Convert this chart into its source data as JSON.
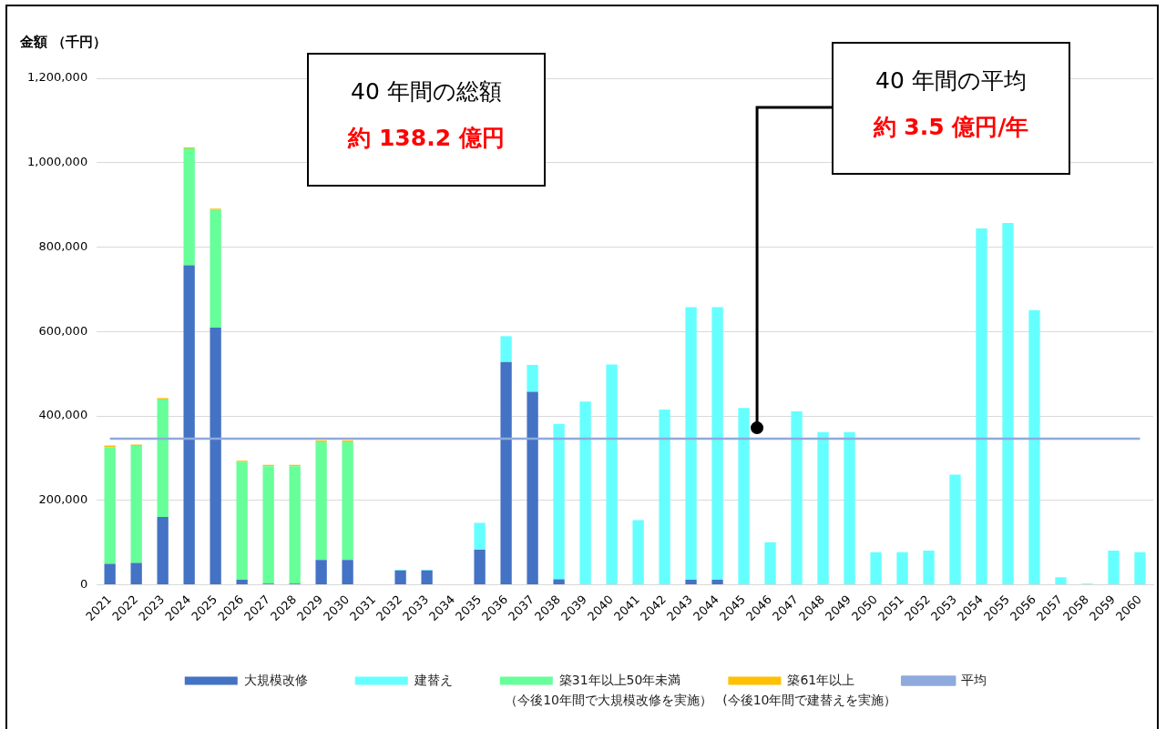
{
  "chart_data": {
    "type": "bar",
    "stacked": true,
    "ylabel": "金額 （千円）",
    "categories": [
      "2021",
      "2022",
      "2023",
      "2024",
      "2025",
      "2026",
      "2027",
      "2028",
      "2029",
      "2030",
      "2031",
      "2032",
      "2033",
      "2034",
      "2035",
      "2036",
      "2037",
      "2038",
      "2039",
      "2040",
      "2041",
      "2042",
      "2043",
      "2044",
      "2045",
      "2046",
      "2047",
      "2048",
      "2049",
      "2050",
      "2051",
      "2052",
      "2053",
      "2054",
      "2055",
      "2056",
      "2057",
      "2058",
      "2059",
      "2060"
    ],
    "series": [
      {
        "name": "大規模改修",
        "color": "#4472c4",
        "values": [
          50000,
          52000,
          161000,
          757000,
          609000,
          12000,
          3000,
          3000,
          59000,
          59000,
          0,
          34000,
          34000,
          0,
          83000,
          528000,
          457000,
          13000,
          0,
          0,
          0,
          0,
          12000,
          12000,
          0,
          0,
          0,
          0,
          0,
          0,
          0,
          0,
          0,
          0,
          0,
          0,
          0,
          0,
          0,
          0
        ]
      },
      {
        "name": "建替え",
        "color": "#66ffff",
        "values": [
          0,
          0,
          0,
          0,
          0,
          0,
          0,
          0,
          0,
          0,
          0,
          2000,
          2000,
          0,
          64000,
          61000,
          64000,
          368000,
          434000,
          522000,
          153000,
          415000,
          646000,
          646000,
          419000,
          101000,
          411000,
          362000,
          362000,
          77000,
          77000,
          81000,
          261000,
          844000,
          857000,
          651000,
          18000,
          3000,
          81000,
          77000
        ]
      },
      {
        "name": "築31年以上50年未満",
        "color": "#66ff99",
        "values": [
          276000,
          277000,
          278000,
          277000,
          279000,
          279000,
          278000,
          278000,
          279000,
          279000,
          0,
          0,
          0,
          0,
          0,
          0,
          0,
          0,
          0,
          0,
          0,
          0,
          0,
          0,
          0,
          0,
          0,
          0,
          0,
          0,
          0,
          0,
          0,
          0,
          0,
          0,
          0,
          0,
          0,
          0
        ]
      },
      {
        "name": "築61年以上",
        "color": "#ffc000",
        "values": [
          4000,
          3000,
          3000,
          2000,
          3000,
          3000,
          3000,
          3000,
          4000,
          4000,
          0,
          0,
          0,
          0,
          0,
          0,
          0,
          0,
          0,
          0,
          0,
          0,
          0,
          0,
          0,
          0,
          0,
          0,
          0,
          0,
          0,
          0,
          0,
          0,
          0,
          0,
          0,
          0,
          0,
          0
        ]
      },
      {
        "name": "平均",
        "type": "line",
        "color": "#8faadc",
        "values": [
          346000,
          346000,
          346000,
          346000,
          346000,
          346000,
          346000,
          346000,
          346000,
          346000,
          346000,
          346000,
          346000,
          346000,
          346000,
          346000,
          346000,
          346000,
          346000,
          346000,
          346000,
          346000,
          346000,
          346000,
          346000,
          346000,
          346000,
          346000,
          346000,
          346000,
          346000,
          346000,
          346000,
          346000,
          346000,
          346000,
          346000,
          346000,
          346000,
          346000
        ]
      }
    ],
    "ylim": [
      0,
      1200000
    ],
    "yticks": [
      {
        "value": 0,
        "label": "0"
      },
      {
        "value": 200000,
        "label": "200,000"
      },
      {
        "value": 400000,
        "label": "400,000"
      },
      {
        "value": 600000,
        "label": "600,000"
      },
      {
        "value": 800000,
        "label": "800,000"
      },
      {
        "value": 1000000,
        "label": "1,000,000"
      },
      {
        "value": 1200000,
        "label": "1,200,000"
      }
    ],
    "annotations": [
      "40 年間の総額",
      "約 138.2 億円",
      "40 年間の平均",
      "約 3.5 億円/年",
      "（今後10年間で大規模改修を実施）",
      "(今後10年間で建替えを実施）"
    ],
    "grid": "y",
    "legend": "bottom"
  }
}
